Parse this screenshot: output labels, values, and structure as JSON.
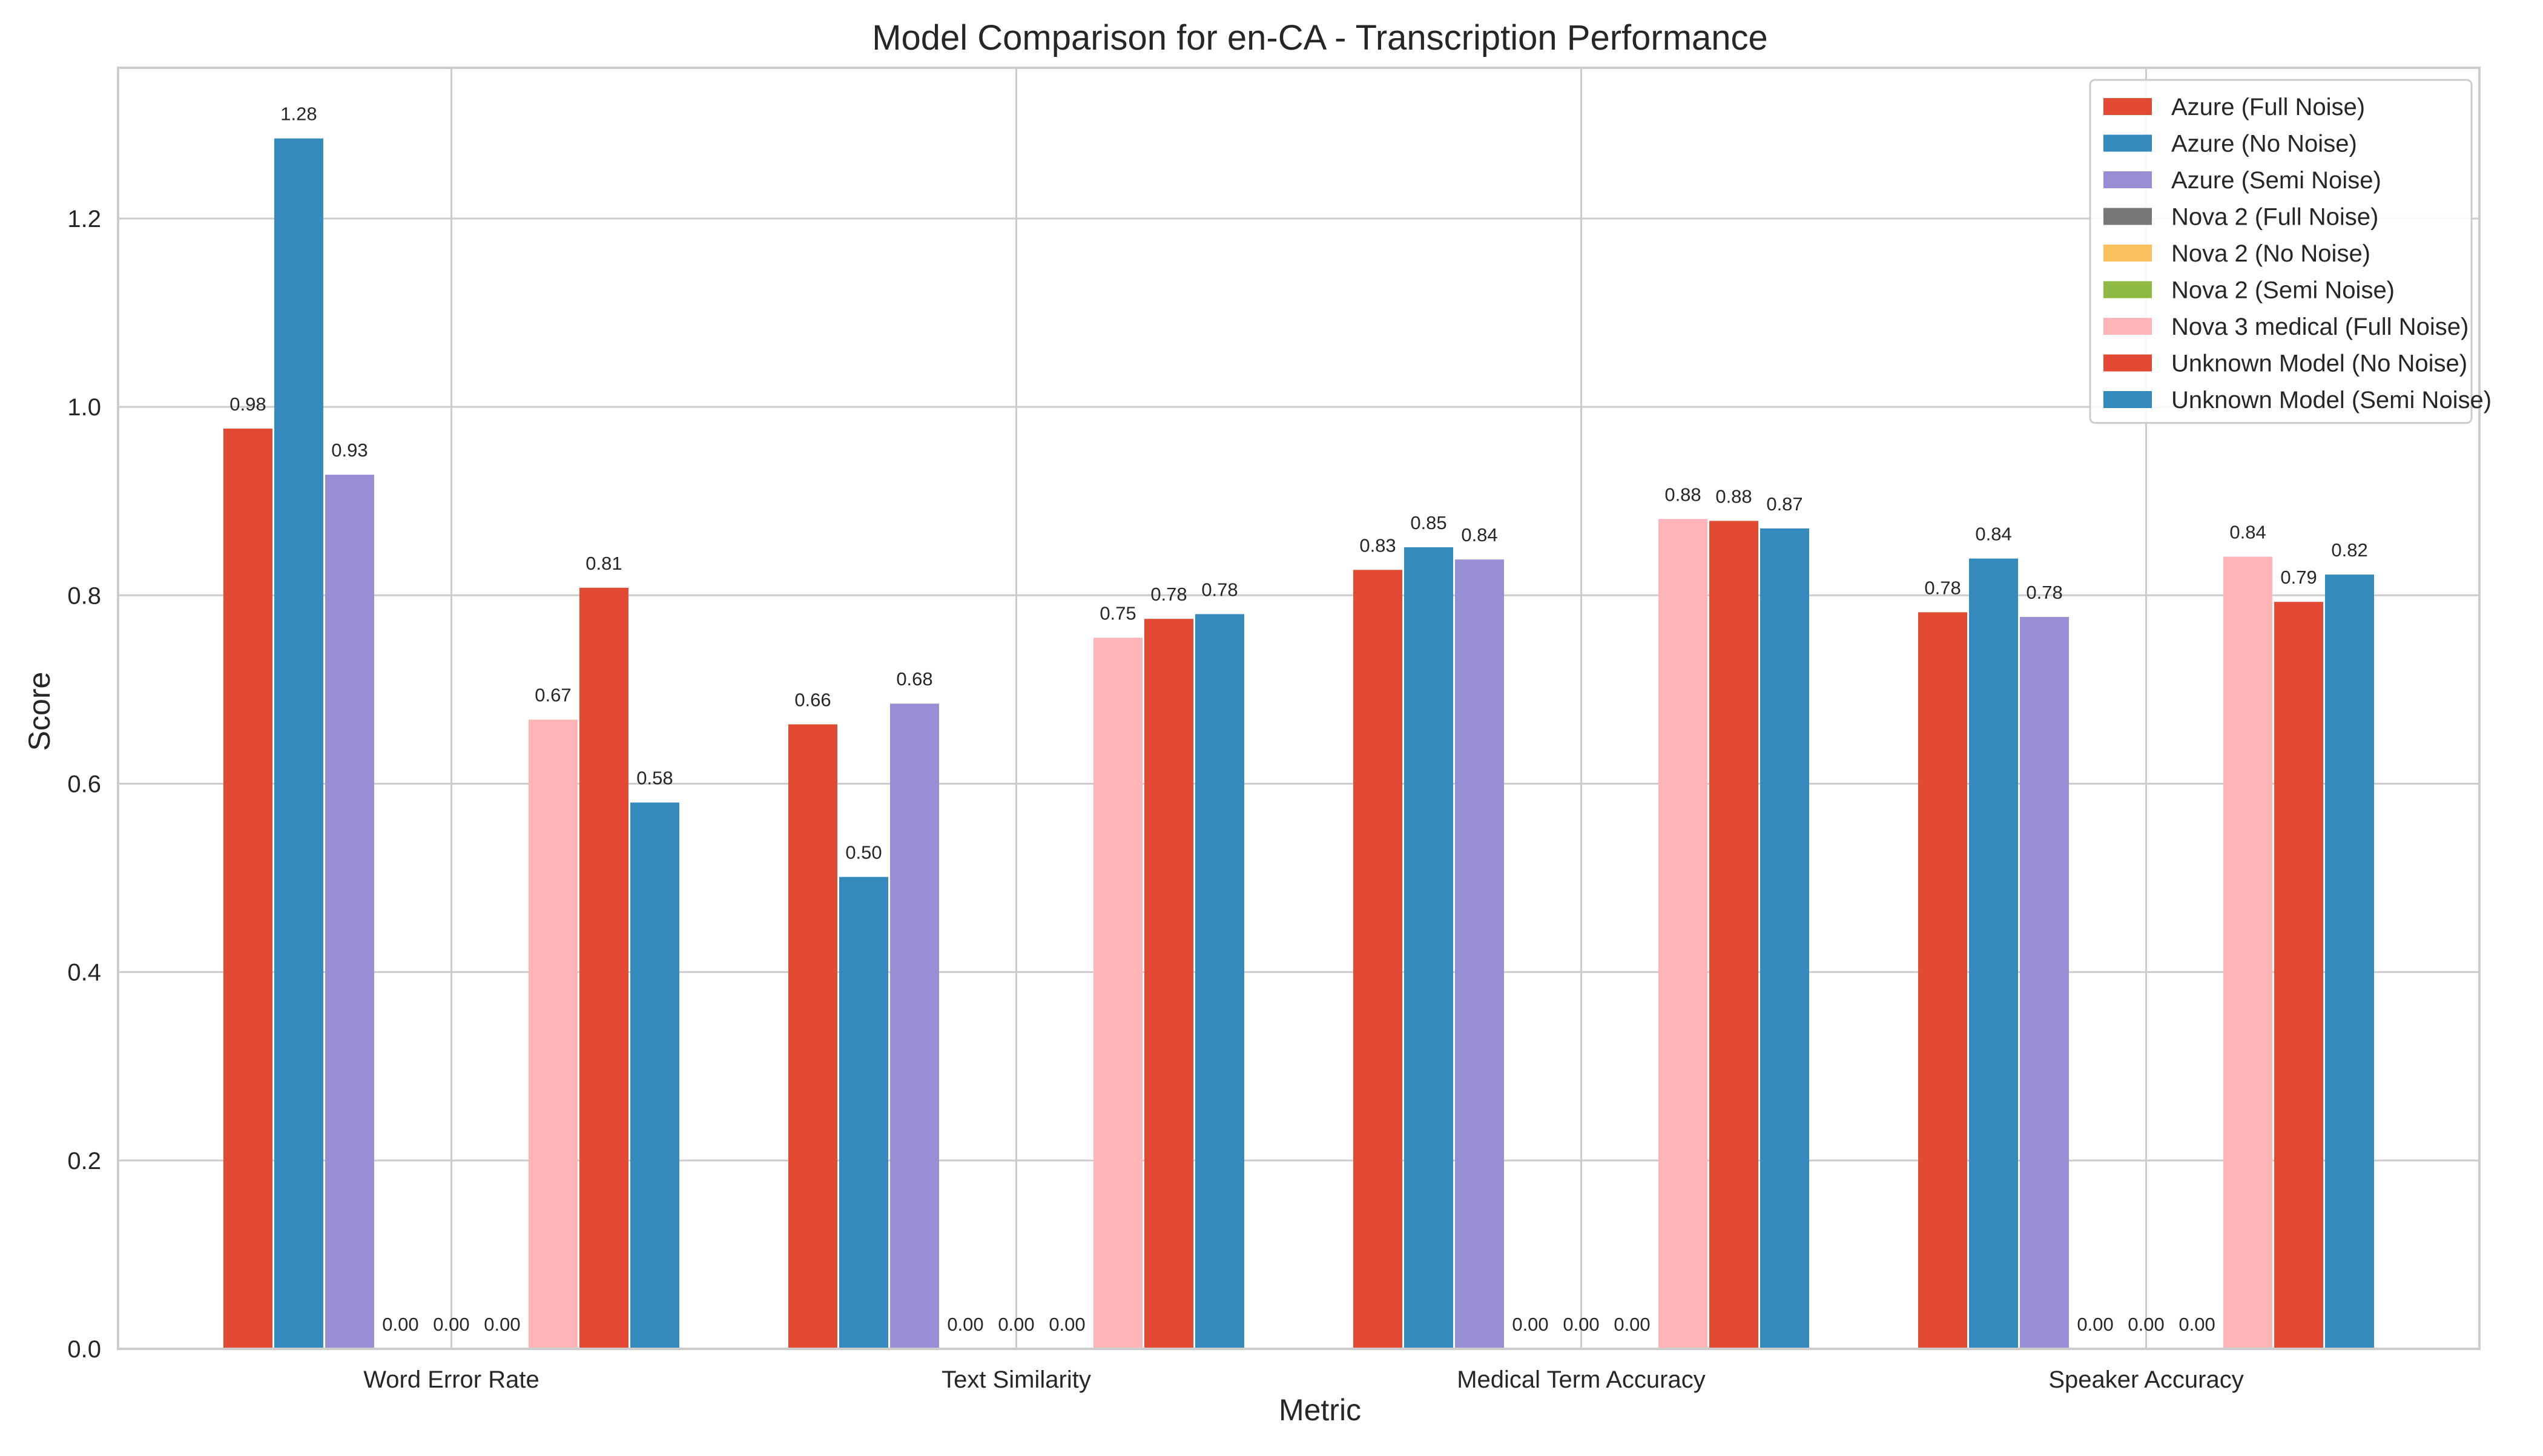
{
  "chart_data": {
    "type": "bar",
    "title": "Model Comparison for en-CA - Transcription Performance",
    "xlabel": "Metric",
    "ylabel": "Score",
    "ylim": [
      0,
      1.36
    ],
    "yticks": [
      "0.0",
      "0.2",
      "0.4",
      "0.6",
      "0.8",
      "1.0",
      "1.2"
    ],
    "grid": true,
    "legend_position": "top-right",
    "categories": [
      "Word Error Rate",
      "Text Similarity",
      "Medical Term Accuracy",
      "Speaker Accuracy"
    ],
    "series": [
      {
        "name": "Azure (Full Noise)",
        "color": "#E24A33",
        "values": [
          0.977,
          0.663,
          0.827,
          0.782
        ],
        "labels": [
          "0.98",
          "0.66",
          "0.83",
          "0.78"
        ]
      },
      {
        "name": "Azure (No Noise)",
        "color": "#348ABD",
        "values": [
          1.285,
          0.501,
          0.851,
          0.839
        ],
        "labels": [
          "1.28",
          "0.50",
          "0.85",
          "0.84"
        ]
      },
      {
        "name": "Azure (Semi Noise)",
        "color": "#988ED5",
        "values": [
          0.928,
          0.685,
          0.838,
          0.777
        ],
        "labels": [
          "0.93",
          "0.68",
          "0.84",
          "0.78"
        ]
      },
      {
        "name": "Nova 2 (Full Noise)",
        "color": "#777777",
        "values": [
          0,
          0,
          0,
          0
        ],
        "labels": [
          "0.00",
          "0.00",
          "0.00",
          "0.00"
        ]
      },
      {
        "name": "Nova 2 (No Noise)",
        "color": "#FBC15E",
        "values": [
          0,
          0,
          0,
          0
        ],
        "labels": [
          "0.00",
          "0.00",
          "0.00",
          "0.00"
        ]
      },
      {
        "name": "Nova 2 (Semi Noise)",
        "color": "#8EBA42",
        "values": [
          0,
          0,
          0,
          0
        ],
        "labels": [
          "0.00",
          "0.00",
          "0.00",
          "0.00"
        ]
      },
      {
        "name": "Nova 3 medical (Full Noise)",
        "color": "#FFB5B8",
        "values": [
          0.668,
          0.755,
          0.881,
          0.841
        ],
        "labels": [
          "0.67",
          "0.75",
          "0.88",
          "0.84"
        ]
      },
      {
        "name": "Unknown Model (No Noise)",
        "color": "#E24A33",
        "values": [
          0.808,
          0.775,
          0.879,
          0.793
        ],
        "labels": [
          "0.81",
          "0.78",
          "0.88",
          "0.79"
        ]
      },
      {
        "name": "Unknown Model (Semi Noise)",
        "color": "#348ABD",
        "values": [
          0.58,
          0.78,
          0.871,
          0.822
        ],
        "labels": [
          "0.58",
          "0.78",
          "0.87",
          "0.82"
        ]
      }
    ]
  }
}
